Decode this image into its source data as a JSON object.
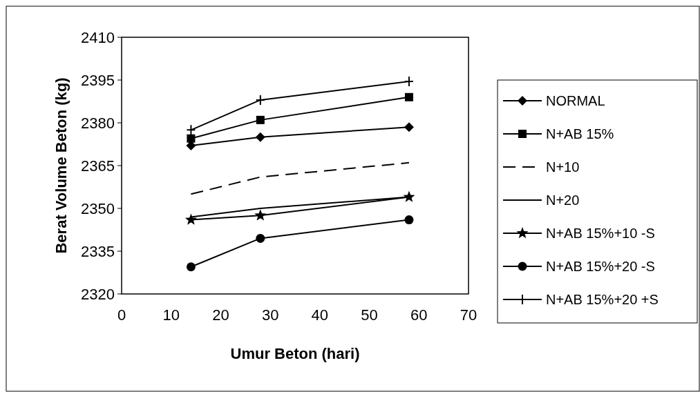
{
  "chart_data": {
    "type": "line",
    "xlabel": "Umur Beton (hari)",
    "ylabel": "Berat Volume Beton (kg)",
    "x": [
      14,
      28,
      58
    ],
    "xlim": [
      0,
      70
    ],
    "xticks": [
      0,
      10,
      20,
      30,
      40,
      50,
      60,
      70
    ],
    "ylim": [
      2320,
      2410
    ],
    "yticks": [
      2320,
      2335,
      2350,
      2365,
      2380,
      2395,
      2410
    ],
    "grid": false,
    "legend": "right",
    "series": [
      {
        "name": "NORMAL",
        "color": "#000000",
        "marker": "diamond",
        "line_style": "solid",
        "values": [
          2372,
          2375,
          2378.5
        ]
      },
      {
        "name": "N+AB 15%",
        "color": "#000000",
        "marker": "square",
        "line_style": "solid",
        "values": [
          2374.5,
          2381,
          2389
        ]
      },
      {
        "name": "N+10",
        "color": "#000000",
        "marker": "none",
        "line_style": "dashed",
        "values": [
          2355,
          2361,
          2366
        ]
      },
      {
        "name": "N+20",
        "color": "#000000",
        "marker": "none",
        "line_style": "solid",
        "values": [
          2347,
          2350,
          2354
        ]
      },
      {
        "name": "N+AB 15%+10 -S",
        "color": "#000000",
        "marker": "star",
        "line_style": "solid",
        "values": [
          2346,
          2347.5,
          2354
        ]
      },
      {
        "name": "N+AB 15%+20 -S",
        "color": "#000000",
        "marker": "circle",
        "line_style": "solid",
        "values": [
          2329.5,
          2339.5,
          2346
        ]
      },
      {
        "name": "N+AB 15%+20 +S",
        "color": "#000000",
        "marker": "cross",
        "line_style": "solid",
        "values": [
          2377.5,
          2388,
          2394.5
        ]
      }
    ]
  }
}
